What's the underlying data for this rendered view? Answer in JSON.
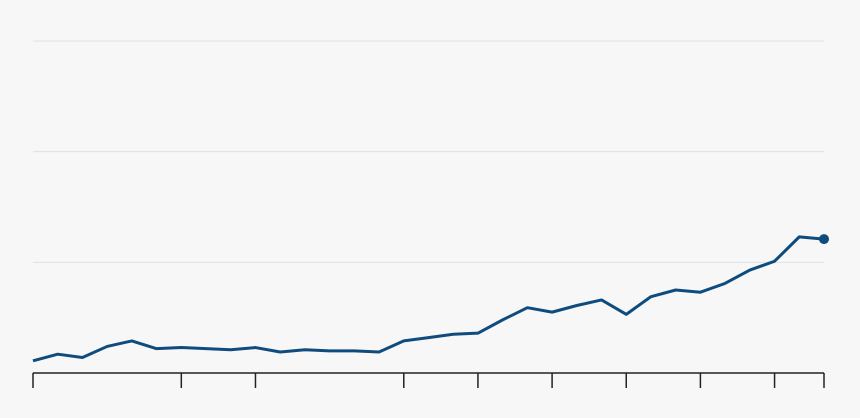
{
  "chart_data": {
    "type": "line",
    "x": [
      0,
      1,
      2,
      3,
      4,
      5,
      6,
      7,
      8,
      9,
      10,
      11,
      12,
      13,
      14,
      15,
      16,
      17,
      18,
      19,
      20,
      21,
      22,
      23,
      24,
      25,
      26,
      27,
      28,
      29,
      30,
      31,
      32
    ],
    "series": [
      {
        "color": "#0f4c7d",
        "values": [
          0.11,
          0.17,
          0.14,
          0.24,
          0.29,
          0.22,
          0.23,
          0.22,
          0.21,
          0.23,
          0.19,
          0.21,
          0.2,
          0.2,
          0.19,
          0.29,
          0.32,
          0.35,
          0.36,
          0.48,
          0.59,
          0.55,
          0.61,
          0.66,
          0.53,
          0.69,
          0.75,
          0.73,
          0.81,
          0.93,
          1.01,
          1.23,
          1.21
        ]
      }
    ],
    "xlim": [
      0,
      32
    ],
    "xticks": [
      0,
      6,
      9,
      15,
      18,
      21,
      24,
      27,
      30,
      32
    ],
    "ylim": [
      0,
      3
    ],
    "yticks": [
      0,
      1,
      2,
      3
    ],
    "grid": true,
    "end_marker": true
  }
}
